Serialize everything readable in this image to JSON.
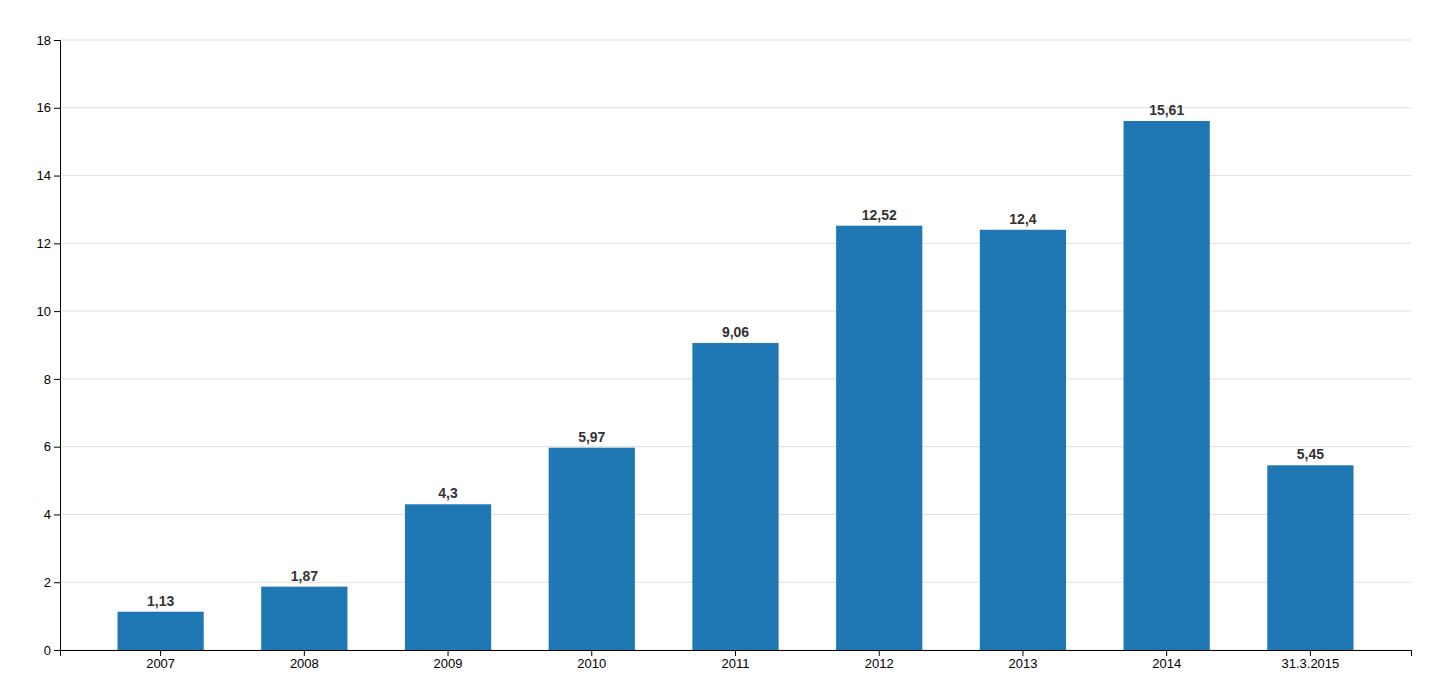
{
  "chart_data": {
    "type": "bar",
    "categories": [
      "2007",
      "2008",
      "2009",
      "2010",
      "2011",
      "2012",
      "2013",
      "2014",
      "31.3.2015"
    ],
    "values": [
      1.13,
      1.87,
      4.3,
      5.97,
      9.06,
      12.52,
      12.4,
      15.61,
      5.45
    ],
    "value_labels": [
      "1,13",
      "1,87",
      "4,3",
      "5,97",
      "9,06",
      "12,52",
      "12,4",
      "15,61",
      "5,45"
    ],
    "data_labels": true,
    "ylim": [
      0,
      18
    ],
    "yticks": [
      0,
      2,
      4,
      6,
      8,
      10,
      12,
      14,
      16,
      18
    ],
    "grid": true
  }
}
